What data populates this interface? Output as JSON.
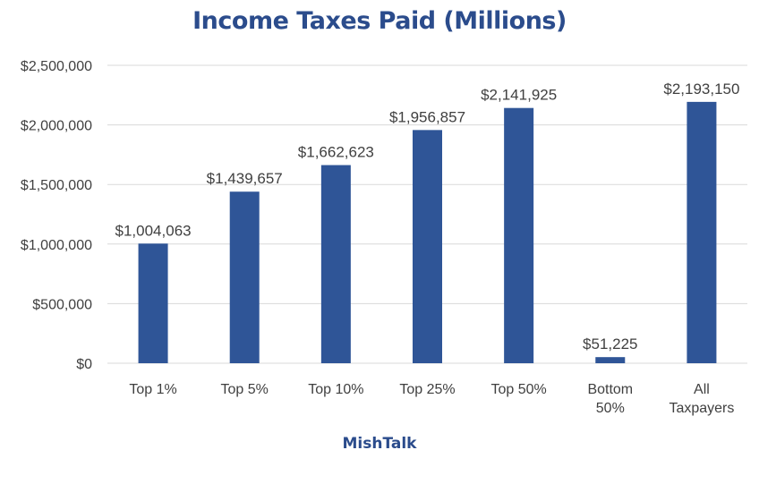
{
  "title": "Income Taxes Paid (Millions)",
  "footer": "MishTalk",
  "colors": {
    "bar": "#2f5597",
    "title": "#2b4c8c",
    "grid": "#d9d9d9",
    "text": "#404040"
  },
  "chart_data": {
    "type": "bar",
    "title": "Income Taxes Paid (Millions)",
    "xlabel": "",
    "ylabel": "",
    "categories": [
      [
        "Top 1%"
      ],
      [
        "Top 5%"
      ],
      [
        "Top 10%"
      ],
      [
        "Top 25%"
      ],
      [
        "Top 50%"
      ],
      [
        "Bottom",
        "50%"
      ],
      [
        "All",
        "Taxpayers"
      ]
    ],
    "values": [
      1004063,
      1439657,
      1662623,
      1956857,
      2141925,
      51225,
      2193150
    ],
    "data_labels": [
      "$1,004,063",
      "$1,439,657",
      "$1,662,623",
      "$1,956,857",
      "$2,141,925",
      "$51,225",
      "$2,193,150"
    ],
    "ylim": [
      0,
      2500000
    ],
    "yticks": [
      0,
      500000,
      1000000,
      1500000,
      2000000,
      2500000
    ],
    "ytick_labels": [
      "$0",
      "$500,000",
      "$1,000,000",
      "$1,500,000",
      "$2,000,000",
      "$2,500,000"
    ],
    "grid": true,
    "legend": "none"
  }
}
